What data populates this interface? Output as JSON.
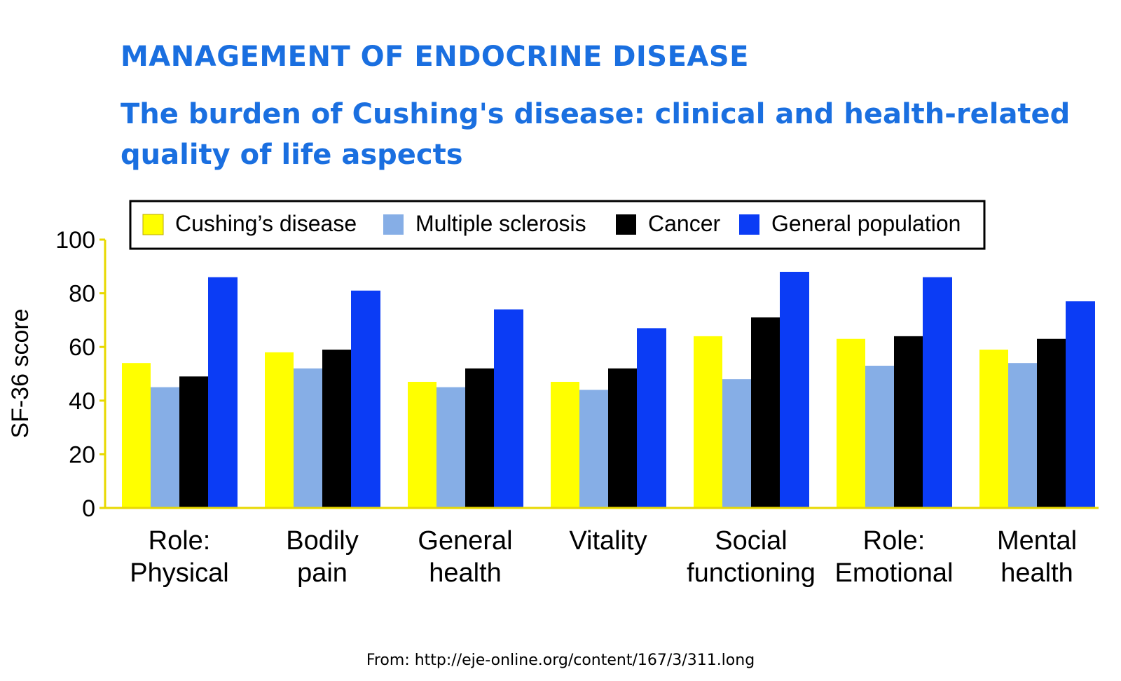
{
  "header": {
    "supertitle": "MANAGEMENT OF ENDOCRINE DISEASE",
    "title": "The burden of Cushing's disease: clinical and health-related quality of life aspects"
  },
  "footer": {
    "source": "From: http://eje-online.org/content/167/3/311.long"
  },
  "chart_data": {
    "type": "bar",
    "ylabel": "SF-36 score",
    "xlabel": "",
    "ylim": [
      0,
      100
    ],
    "yticks": [
      0,
      20,
      40,
      60,
      80,
      100
    ],
    "grid": false,
    "legend_position": "top",
    "categories": [
      [
        "Role:",
        "Physical"
      ],
      [
        "Bodily",
        "pain"
      ],
      [
        "General",
        "health"
      ],
      [
        "Vitality"
      ],
      [
        "Social",
        "functioning"
      ],
      [
        "Role:",
        "Emotional"
      ],
      [
        "Mental",
        "health"
      ]
    ],
    "series": [
      {
        "name": "Cushing’s disease",
        "color": "#ffff00",
        "values": [
          54,
          58,
          47,
          47,
          64,
          63,
          59
        ]
      },
      {
        "name": "Multiple sclerosis",
        "color": "#86aee6",
        "values": [
          45,
          52,
          45,
          44,
          48,
          53,
          54
        ]
      },
      {
        "name": "Cancer",
        "color": "#000000",
        "values": [
          49,
          59,
          52,
          52,
          71,
          64,
          63
        ]
      },
      {
        "name": "General population",
        "color": "#0b3cf5",
        "values": [
          86,
          81,
          74,
          67,
          88,
          86,
          77
        ]
      }
    ]
  }
}
